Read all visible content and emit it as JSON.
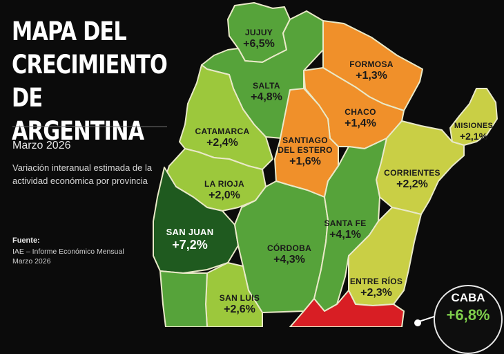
{
  "title": "MAPA DEL CRECIMIENTO DE ARGENTINA",
  "date": "Marzo 2026",
  "subtitle": "Variación interanual estimada de la actividad económica por provincia",
  "source": {
    "label": "Fuente:",
    "text_line1": "IAE – Informe Económico Mensual",
    "text_line2": "Marzo 2026"
  },
  "colors": {
    "background": "#0b0b0b",
    "dark_green": "#1f5a1f",
    "mid_green": "#56a33a",
    "light_green": "#9cc83c",
    "yellow_green": "#c9cf45",
    "orange": "#f0902a",
    "red": "#d81e24",
    "border": "#e9e9c8"
  },
  "provinces": [
    {
      "name": "JUJUY",
      "value": "+6,5%"
    },
    {
      "name": "SALTA",
      "value": "+4,8%"
    },
    {
      "name": "FORMOSA",
      "value": "+1,3%"
    },
    {
      "name": "CHACO",
      "value": "+1,4%"
    },
    {
      "name": "MISIONES",
      "value": "+2,1%"
    },
    {
      "name": "CATAMARCA",
      "value": "+2,4%"
    },
    {
      "name": "SANTIAGO DEL ESTERO",
      "name_line1": "SANTIAGO",
      "name_line2": "DEL ESTERO",
      "value": "+1,6%"
    },
    {
      "name": "CORRIENTES",
      "value": "+2,2%"
    },
    {
      "name": "LA RIOJA",
      "value": "+2,0%"
    },
    {
      "name": "SAN JUAN",
      "value": "+7,2%"
    },
    {
      "name": "SANTA FE",
      "value": "+4,1%"
    },
    {
      "name": "CÓRDOBA",
      "value": "+4,3%"
    },
    {
      "name": "ENTRE RÍOS",
      "value": "+2,3%"
    },
    {
      "name": "SAN LUIS",
      "value": "+2,6%"
    }
  ],
  "caba": {
    "name": "CABA",
    "value": "+6,8%"
  }
}
